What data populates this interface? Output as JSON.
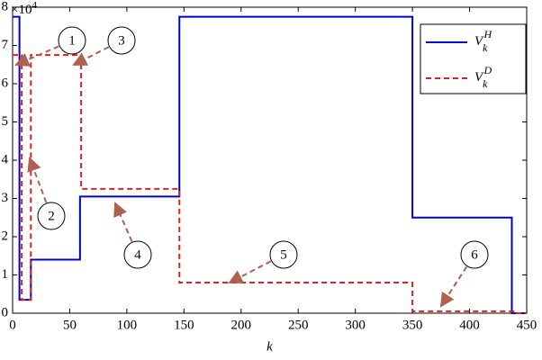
{
  "chart_data": {
    "type": "line",
    "xlabel": "k",
    "y_scale_label": {
      "base": "×10",
      "exponent": "4"
    },
    "xlim": [
      0,
      450
    ],
    "xticks": [
      0,
      50,
      100,
      150,
      200,
      250,
      300,
      350,
      400,
      450
    ],
    "ylim": [
      0,
      8
    ],
    "yticks": [
      0,
      1,
      2,
      3,
      4,
      5,
      6,
      7,
      8
    ],
    "legend": "upper right",
    "series": [
      {
        "name": "V",
        "subscript": "k",
        "superscript": "H",
        "color": "#0000cc",
        "dash": false,
        "x": [
          0,
          6,
          6,
          16,
          16,
          59,
          59,
          146,
          146,
          350,
          350,
          437,
          437,
          450
        ],
        "values": [
          7.75,
          7.75,
          0.35,
          0.35,
          1.4,
          1.4,
          3.05,
          3.05,
          7.75,
          7.75,
          2.5,
          2.5,
          0,
          0
        ]
      },
      {
        "name": "V",
        "subscript": "k",
        "superscript": "D",
        "color": "#e02020",
        "dash": true,
        "x": [
          0,
          8,
          8,
          16,
          16,
          60,
          60,
          146,
          146,
          350,
          350,
          440,
          440,
          450
        ],
        "values": [
          6.75,
          6.75,
          0.35,
          0.35,
          6.75,
          6.75,
          3.25,
          3.25,
          0.8,
          0.8,
          0.05,
          0.05,
          0,
          0
        ]
      }
    ],
    "annotations": [
      "1",
      "2",
      "3",
      "4",
      "5",
      "6"
    ]
  }
}
